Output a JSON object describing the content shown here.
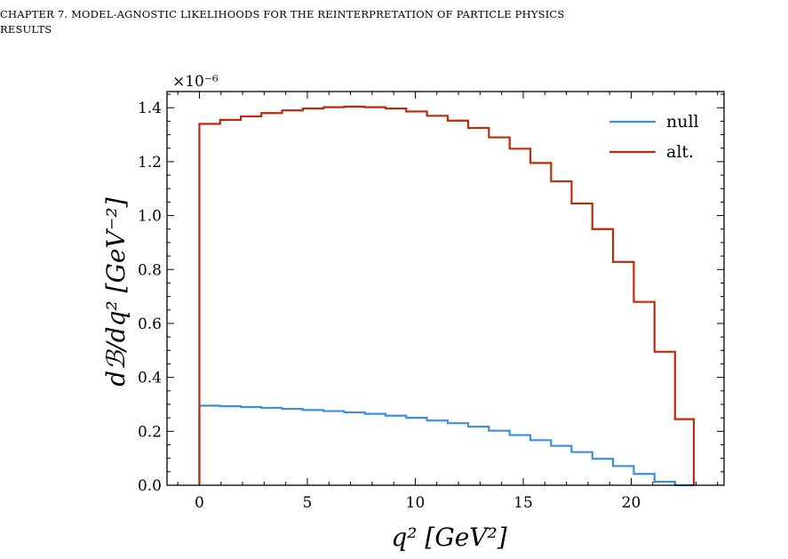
{
  "page": {
    "running_head_line1": "CHAPTER 7.  MODEL-AGNOSTIC LIKELIHOODS FOR THE REINTERPRETATION OF PARTICLE PHYSICS",
    "running_head_line2": "RESULTS"
  },
  "chart_data": {
    "type": "line",
    "drawstyle": "steps-post",
    "xlabel": "q² [GeV²]",
    "ylabel": "dℬ/dq² [GeV⁻²]",
    "y_multiplier": "×10⁻⁶",
    "xlim": [
      -1.5,
      24.3
    ],
    "ylim": [
      0.0,
      1.46
    ],
    "x_ticks": [
      0,
      5,
      10,
      15,
      20
    ],
    "y_ticks": [
      0.0,
      0.2,
      0.4,
      0.6,
      0.8,
      1.0,
      1.2,
      1.4
    ],
    "x_tick_labels": [
      "0",
      "5",
      "10",
      "15",
      "20"
    ],
    "y_tick_labels": [
      "0.0",
      "0.2",
      "0.4",
      "0.6",
      "0.8",
      "1.0",
      "1.2",
      "1.4"
    ],
    "legend_position": "top-right",
    "bin_edges": [
      0,
      0.96,
      1.92,
      2.87,
      3.83,
      4.79,
      5.75,
      6.71,
      7.66,
      8.62,
      9.58,
      10.54,
      11.5,
      12.45,
      13.41,
      14.37,
      15.33,
      16.29,
      17.24,
      18.2,
      19.16,
      20.12,
      21.08,
      22.03,
      22.9
    ],
    "series": [
      {
        "name": "null",
        "color": "#3b8fdc",
        "values": [
          0.295,
          0.293,
          0.29,
          0.287,
          0.283,
          0.279,
          0.275,
          0.27,
          0.265,
          0.258,
          0.25,
          0.24,
          0.23,
          0.217,
          0.202,
          0.186,
          0.167,
          0.146,
          0.123,
          0.098,
          0.071,
          0.042,
          0.013,
          0.0
        ]
      },
      {
        "name": "alt.",
        "color": "#bf2a08",
        "values": [
          1.34,
          1.355,
          1.368,
          1.38,
          1.39,
          1.397,
          1.402,
          1.404,
          1.402,
          1.397,
          1.386,
          1.37,
          1.352,
          1.325,
          1.29,
          1.248,
          1.195,
          1.127,
          1.045,
          0.95,
          0.828,
          0.68,
          0.495,
          0.245
        ]
      }
    ]
  }
}
